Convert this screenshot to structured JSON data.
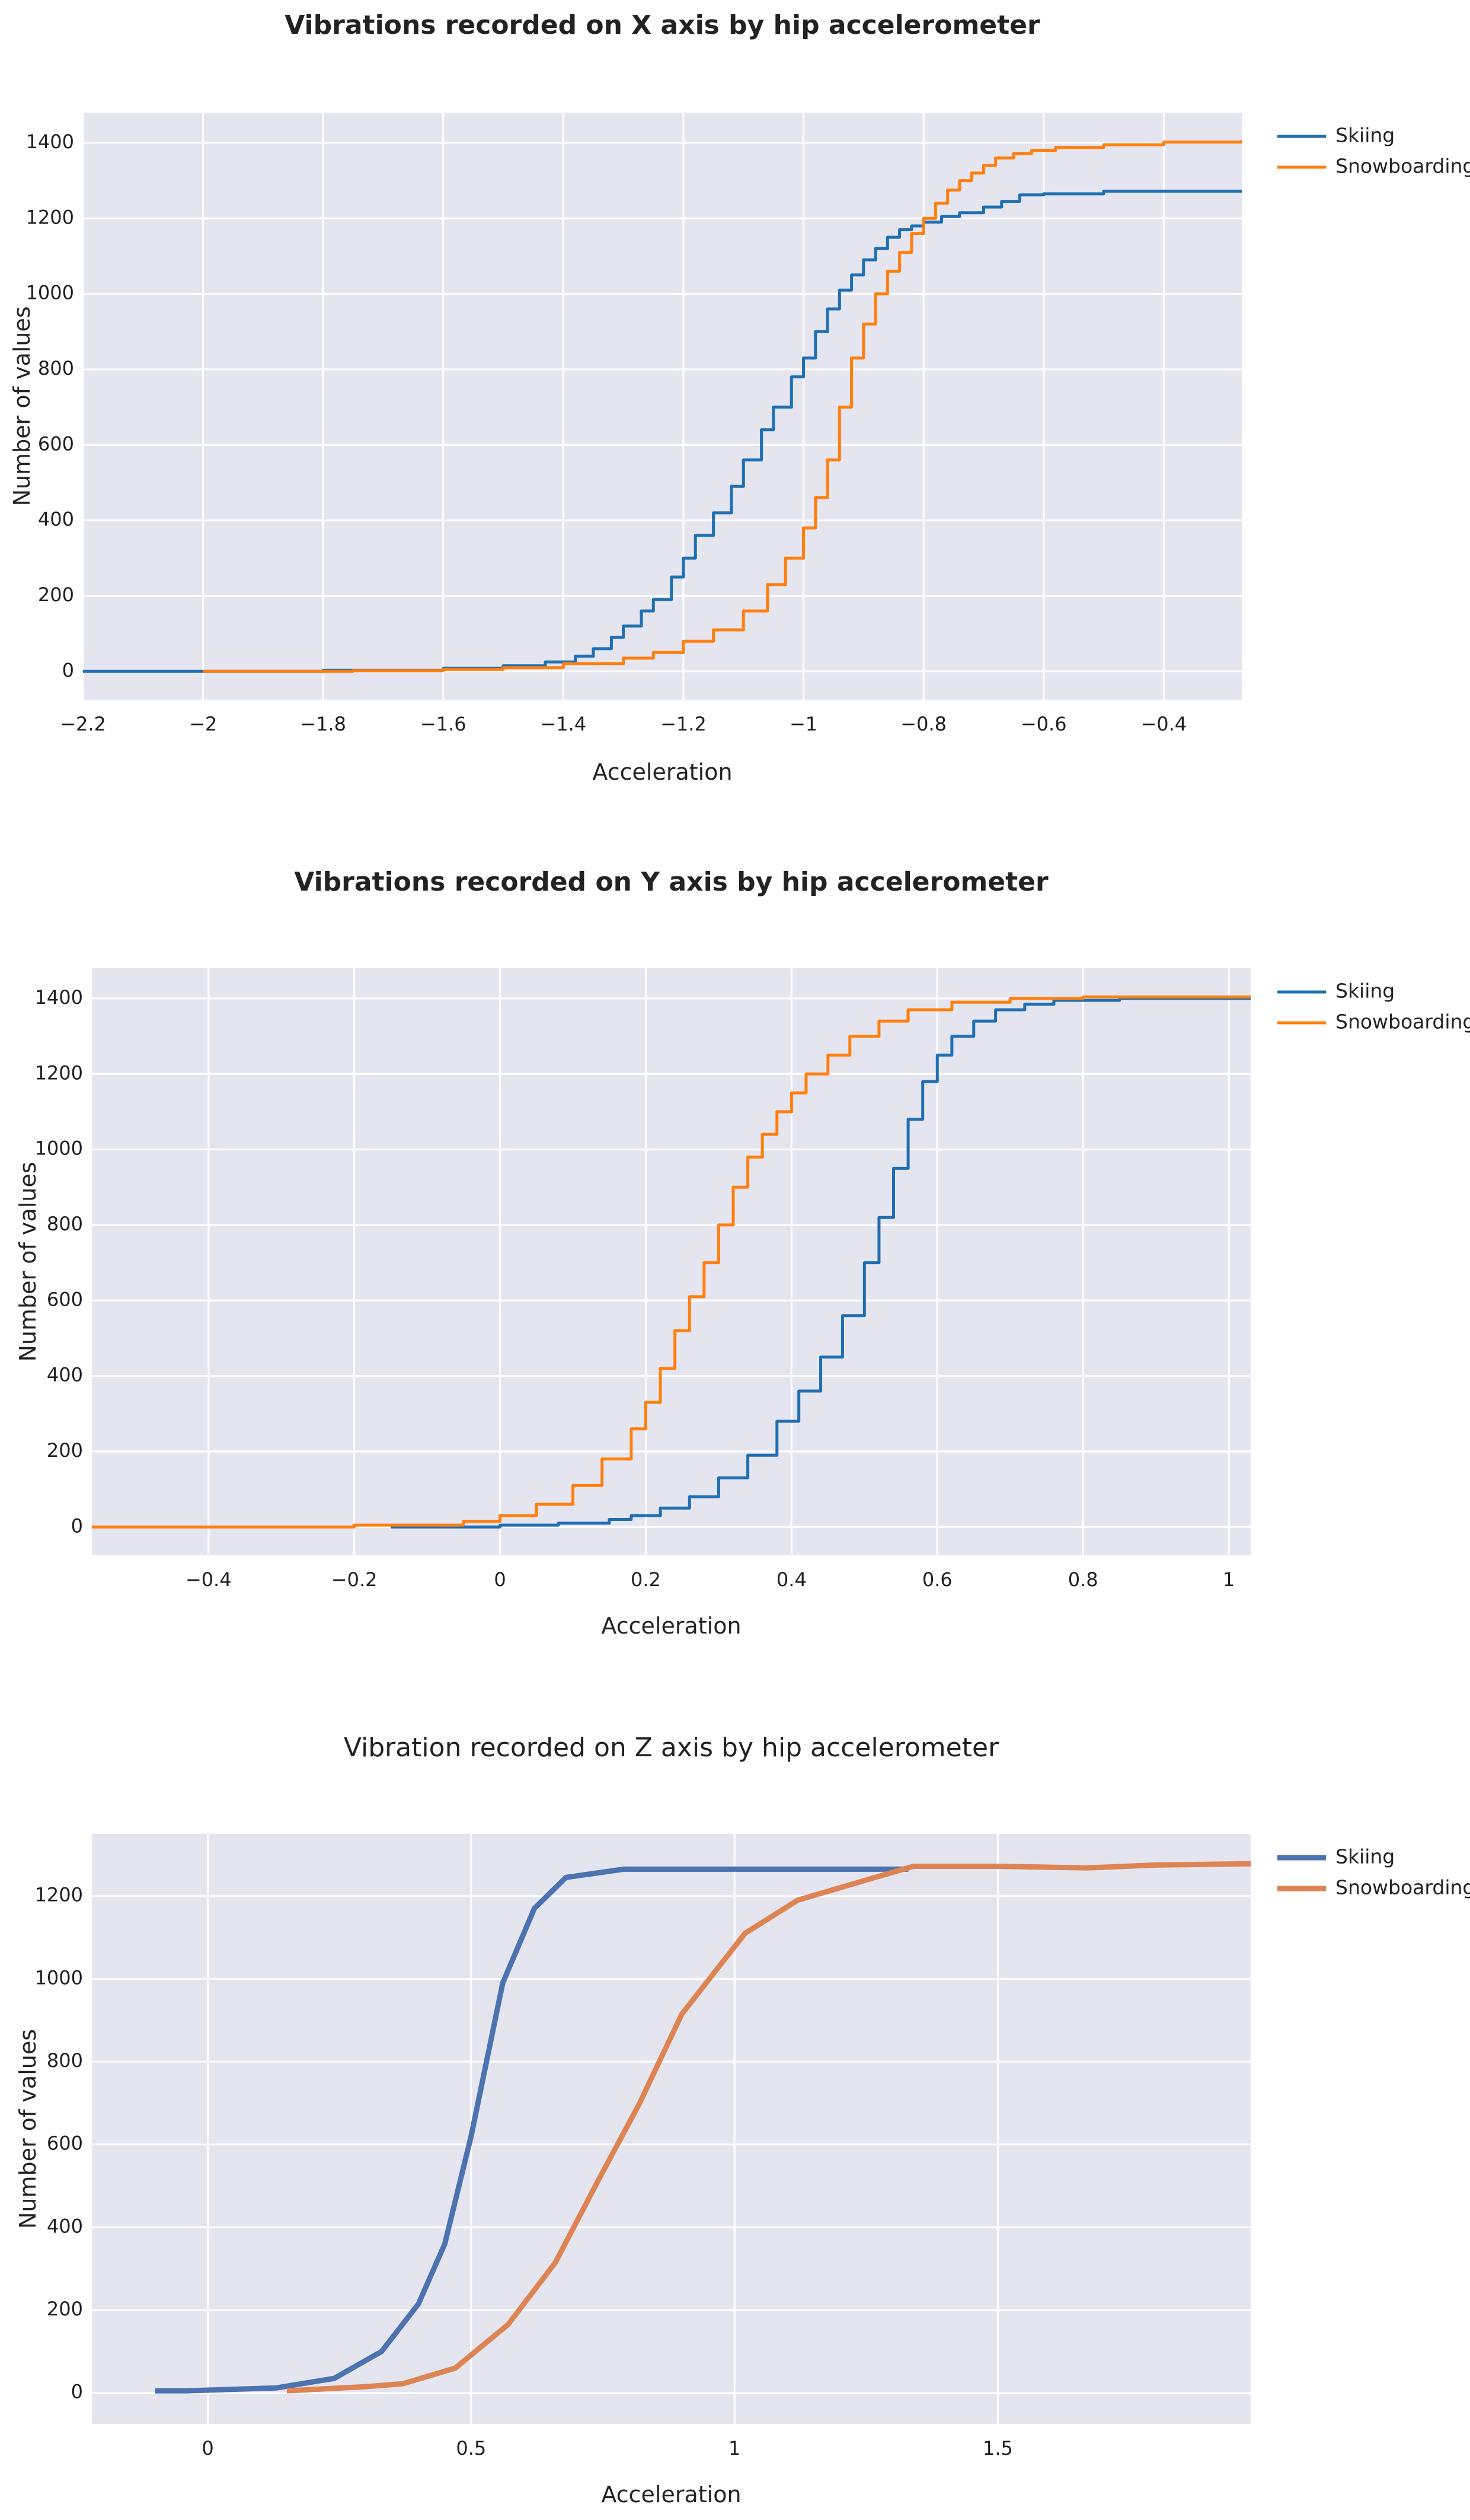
{
  "colors": {
    "plot_bg": "#e5e5f0",
    "grid": "#ffffff",
    "axis_text": "#1f1f1f",
    "skiing_step": "#1f6fb2",
    "snowboarding_step": "#ff7f0e",
    "skiing_smooth": "#4c72b0",
    "snowboarding_smooth": "#dd8452"
  },
  "chart_data": [
    {
      "type": "line",
      "line_shape": "step",
      "title": "Vibrations recorded on X axis by hip accelerometer",
      "title_weight": "bold",
      "xlabel": "Acceleration",
      "ylabel": "Number of values",
      "xlim": [
        -2.2,
        -0.27
      ],
      "ylim": [
        -75,
        1480
      ],
      "xticks": [
        -2.2,
        -2,
        -1.8,
        -1.6,
        -1.4,
        -1.2,
        -1,
        -0.8,
        -0.6,
        -0.4
      ],
      "xtick_labels": [
        "−2.2",
        "−2",
        "−1.8",
        "−1.6",
        "−1.4",
        "−1.2",
        "−1",
        "−0.8",
        "−0.6",
        "−0.4"
      ],
      "yticks": [
        0,
        200,
        400,
        600,
        800,
        1000,
        1200,
        1400
      ],
      "ytick_labels": [
        "0",
        "200",
        "400",
        "600",
        "800",
        "1000",
        "1200",
        "1400"
      ],
      "grid": true,
      "legend_position": "top-right",
      "series": [
        {
          "name": "Skiing",
          "color": "#1f6fb2",
          "x": [
            -2.2,
            -1.8,
            -1.6,
            -1.5,
            -1.43,
            -1.38,
            -1.35,
            -1.32,
            -1.3,
            -1.27,
            -1.25,
            -1.22,
            -1.2,
            -1.18,
            -1.15,
            -1.12,
            -1.1,
            -1.07,
            -1.05,
            -1.02,
            -1.0,
            -0.98,
            -0.96,
            -0.94,
            -0.92,
            -0.9,
            -0.88,
            -0.86,
            -0.84,
            -0.82,
            -0.8,
            -0.77,
            -0.74,
            -0.7,
            -0.67,
            -0.64,
            -0.6,
            -0.5,
            -0.27
          ],
          "y": [
            0,
            3,
            8,
            15,
            25,
            40,
            60,
            90,
            120,
            160,
            190,
            250,
            300,
            360,
            420,
            490,
            560,
            640,
            700,
            780,
            830,
            900,
            960,
            1010,
            1050,
            1090,
            1120,
            1150,
            1170,
            1180,
            1190,
            1205,
            1215,
            1230,
            1245,
            1262,
            1265,
            1272,
            1275
          ]
        },
        {
          "name": "Snowboarding",
          "color": "#ff7f0e",
          "x": [
            -2.0,
            -1.75,
            -1.6,
            -1.5,
            -1.4,
            -1.3,
            -1.25,
            -1.2,
            -1.15,
            -1.1,
            -1.06,
            -1.03,
            -1.0,
            -0.98,
            -0.96,
            -0.94,
            -0.92,
            -0.9,
            -0.88,
            -0.86,
            -0.84,
            -0.82,
            -0.8,
            -0.78,
            -0.76,
            -0.74,
            -0.72,
            -0.7,
            -0.68,
            -0.65,
            -0.62,
            -0.58,
            -0.5,
            -0.4,
            -0.27
          ],
          "y": [
            0,
            2,
            5,
            10,
            20,
            35,
            50,
            80,
            110,
            160,
            230,
            300,
            380,
            460,
            560,
            700,
            830,
            920,
            1000,
            1060,
            1110,
            1160,
            1200,
            1240,
            1275,
            1300,
            1320,
            1340,
            1360,
            1372,
            1380,
            1388,
            1395,
            1402,
            1408
          ]
        }
      ]
    },
    {
      "type": "line",
      "line_shape": "step",
      "title": "Vibrations recorded on Y axis by hip accelerometer",
      "title_weight": "bold",
      "xlabel": "Acceleration",
      "ylabel": "Number of values",
      "xlim": [
        -0.56,
        1.03
      ],
      "ylim": [
        -75,
        1480
      ],
      "xticks": [
        -0.4,
        -0.2,
        0,
        0.2,
        0.4,
        0.6,
        0.8,
        1
      ],
      "xtick_labels": [
        "−0.4",
        "−0.2",
        "0",
        "0.2",
        "0.4",
        "0.6",
        "0.8",
        "1"
      ],
      "yticks": [
        0,
        200,
        400,
        600,
        800,
        1000,
        1200,
        1400
      ],
      "ytick_labels": [
        "0",
        "200",
        "400",
        "600",
        "800",
        "1000",
        "1200",
        "1400"
      ],
      "grid": true,
      "legend_position": "top-right",
      "series": [
        {
          "name": "Skiing",
          "color": "#1f6fb2",
          "x": [
            -0.15,
            0.0,
            0.08,
            0.15,
            0.18,
            0.22,
            0.26,
            0.3,
            0.34,
            0.38,
            0.41,
            0.44,
            0.47,
            0.5,
            0.52,
            0.54,
            0.56,
            0.58,
            0.6,
            0.62,
            0.65,
            0.68,
            0.72,
            0.76,
            0.85,
            1.03
          ],
          "y": [
            0,
            5,
            10,
            20,
            30,
            50,
            80,
            130,
            190,
            280,
            360,
            450,
            560,
            700,
            820,
            950,
            1080,
            1180,
            1250,
            1300,
            1340,
            1370,
            1385,
            1395,
            1400,
            1408
          ]
        },
        {
          "name": "Snowboarding",
          "color": "#ff7f0e",
          "x": [
            -0.56,
            -0.2,
            -0.05,
            0.0,
            0.05,
            0.1,
            0.14,
            0.18,
            0.2,
            0.22,
            0.24,
            0.26,
            0.28,
            0.3,
            0.32,
            0.34,
            0.36,
            0.38,
            0.4,
            0.42,
            0.45,
            0.48,
            0.52,
            0.56,
            0.62,
            0.7,
            0.8,
            1.03
          ],
          "y": [
            0,
            5,
            15,
            30,
            60,
            110,
            180,
            260,
            330,
            420,
            520,
            610,
            700,
            800,
            900,
            980,
            1040,
            1100,
            1150,
            1200,
            1250,
            1300,
            1340,
            1370,
            1390,
            1400,
            1404,
            1408
          ]
        }
      ]
    },
    {
      "type": "line",
      "line_shape": "linear",
      "title": "Vibration recorded on Z axis by hip accelerometer",
      "title_weight": "normal",
      "xlabel": "Acceleration",
      "ylabel": "Number of values",
      "xlim": [
        -0.22,
        1.98
      ],
      "ylim": [
        -75,
        1350
      ],
      "xticks": [
        0,
        0.5,
        1,
        1.5
      ],
      "xtick_labels": [
        "0",
        "0.5",
        "1",
        "1.5"
      ],
      "yticks": [
        0,
        200,
        400,
        600,
        800,
        1000,
        1200
      ],
      "ytick_labels": [
        "0",
        "200",
        "400",
        "600",
        "800",
        "1000",
        "1200"
      ],
      "grid": true,
      "legend_position": "top-right",
      "series": [
        {
          "name": "Skiing",
          "color": "#4c72b0",
          "x": [
            -0.1,
            -0.04,
            0.13,
            0.24,
            0.33,
            0.4,
            0.45,
            0.5,
            0.56,
            0.62,
            0.68,
            0.79,
            1.0,
            1.33
          ],
          "y": [
            5,
            5,
            12,
            35,
            100,
            215,
            360,
            620,
            990,
            1170,
            1245,
            1265,
            1265,
            1265
          ]
        },
        {
          "name": "Snowboarding",
          "color": "#dd8452",
          "x": [
            0.15,
            0.3,
            0.37,
            0.47,
            0.57,
            0.66,
            0.74,
            0.82,
            0.9,
            1.02,
            1.12,
            1.24,
            1.34,
            1.5,
            1.67,
            1.8,
            1.98
          ],
          "y": [
            5,
            15,
            22,
            60,
            165,
            315,
            510,
            700,
            915,
            1110,
            1190,
            1235,
            1272,
            1272,
            1268,
            1275,
            1278
          ]
        }
      ]
    }
  ]
}
